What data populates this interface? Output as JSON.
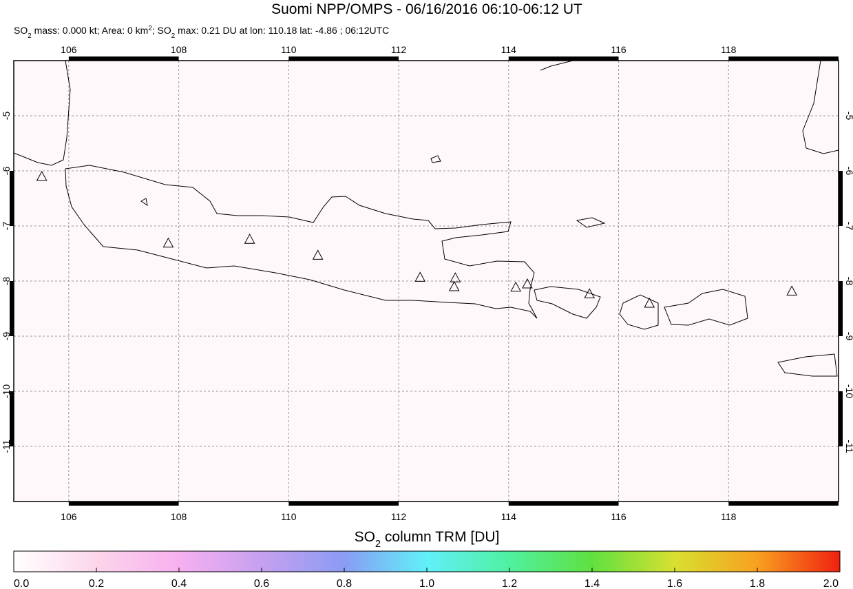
{
  "title": "Suomi NPP/OMPS - 06/16/2016 06:10-06:12 UT",
  "subtitle": [
    "SO",
    "2",
    " mass: 0.000 kt; Area: 0 km",
    "2",
    "; SO",
    "2",
    " max: 0.21 DU at lon: 110.18 lat: -4.86 ; 06:12UTC"
  ],
  "map": {
    "lonlim": [
      105,
      120
    ],
    "latlim": [
      -12,
      -4
    ],
    "lonticks": [
      106,
      108,
      110,
      112,
      114,
      116,
      118
    ],
    "latticks": [
      -5,
      -6,
      -7,
      -8,
      -9,
      -10,
      -11
    ],
    "grid": true,
    "volcanoes": {
      "lon": [
        105.51,
        107.81,
        109.29,
        110.53,
        112.39,
        113.03,
        113.01,
        114.13,
        114.34,
        115.47,
        116.56,
        119.15
      ],
      "lat": [
        -6.1,
        -7.31,
        -7.24,
        -7.53,
        -7.93,
        -7.94,
        -8.1,
        -8.11,
        -8.05,
        -8.23,
        -8.4,
        -8.18
      ]
    }
  },
  "colorbar": {
    "label": [
      "SO",
      "2",
      " column TRM [DU]"
    ],
    "lim": [
      0,
      2
    ],
    "ticks": [
      {
        "value": 0,
        "label": "0.0"
      },
      {
        "value": 0.2,
        "label": "0.2"
      },
      {
        "value": 0.4,
        "label": "0.4"
      },
      {
        "value": 0.6,
        "label": "0.6"
      },
      {
        "value": 0.8,
        "label": "0.8"
      },
      {
        "value": 1,
        "label": "1.0"
      },
      {
        "value": 1.2,
        "label": "1.2"
      },
      {
        "value": 1.4,
        "label": "1.4"
      },
      {
        "value": 1.6,
        "label": "1.6"
      },
      {
        "value": 1.8,
        "label": "1.8"
      },
      {
        "value": 2,
        "label": "2.0"
      }
    ]
  }
}
